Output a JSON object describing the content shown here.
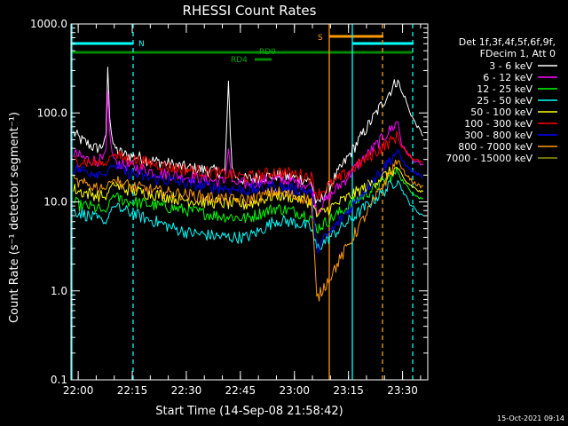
{
  "chart_data": {
    "type": "line",
    "title": "RHESSI Count Rates",
    "xlabel": "Start Time (14-Sep-08 21:58:42)",
    "ylabel": "Count Rate (s⁻¹ detector segment⁻¹)",
    "footer_date": "15-Oct-2021 09:14",
    "x_unit": "minutes after 21:58:42",
    "xlim": [
      -0.7,
      98.3
    ],
    "ylim": [
      0.1,
      1000
    ],
    "yscale": "log",
    "grid": false,
    "legend_placement": "right",
    "legend_header": [
      "Det 1f,3f,4f,5f,6f,9f,",
      "FDecim 1, Att 0"
    ],
    "x_ticks": [
      {
        "v": 1.3,
        "label": "22:00"
      },
      {
        "v": 16.3,
        "label": "22:15"
      },
      {
        "v": 31.3,
        "label": "22:30"
      },
      {
        "v": 46.3,
        "label": "22:45"
      },
      {
        "v": 61.3,
        "label": "23:00"
      },
      {
        "v": 76.3,
        "label": "23:15"
      },
      {
        "v": 91.3,
        "label": "23:30"
      }
    ],
    "y_ticks": [
      {
        "v": 0.1,
        "label": "0.1"
      },
      {
        "v": 1,
        "label": "1.0"
      },
      {
        "v": 10,
        "label": "10.0"
      },
      {
        "v": 100,
        "label": "100.0"
      },
      {
        "v": 1000,
        "label": "1000.0"
      }
    ],
    "series": [
      {
        "name": "3 - 6 keV",
        "color": "#ffffff",
        "x": [
          0,
          2,
          4,
          6,
          8,
          9,
          9.5,
          10,
          10.5,
          11,
          12,
          14,
          16,
          18,
          20,
          24,
          28,
          32,
          36,
          40,
          42,
          43,
          43.5,
          44,
          45,
          46,
          48,
          52,
          56,
          60,
          64,
          66,
          67.5,
          90,
          91,
          92,
          93,
          94,
          95,
          96,
          97
        ],
        "y": [
          60,
          50,
          45,
          40,
          42,
          55,
          330,
          95,
          60,
          45,
          38,
          34,
          33,
          32,
          30,
          28,
          26,
          24,
          23,
          22,
          22,
          220,
          60,
          25,
          19,
          18,
          18,
          19,
          20,
          19,
          18,
          17,
          9,
          240,
          170,
          150,
          110,
          90,
          75,
          65,
          55
        ]
      },
      {
        "name": "6 - 12 keV",
        "color": "#ff00ff",
        "x": [
          0,
          2,
          4,
          6,
          8,
          9,
          9.5,
          10,
          10.5,
          11,
          12,
          14,
          16,
          18,
          20,
          24,
          28,
          32,
          36,
          40,
          42,
          43,
          43.5,
          44,
          45,
          46,
          48,
          52,
          56,
          60,
          64,
          66,
          67.5,
          90,
          91,
          92,
          93,
          94,
          95,
          96,
          97
        ],
        "y": [
          35,
          32,
          30,
          29,
          30,
          38,
          170,
          65,
          40,
          32,
          28,
          26,
          25,
          24,
          23,
          21,
          20,
          19,
          18,
          17,
          17,
          40,
          25,
          17,
          16,
          16,
          16,
          17,
          18,
          17,
          16,
          15,
          8,
          80,
          45,
          38,
          34,
          30,
          28,
          27,
          26
        ]
      },
      {
        "name": "12 - 25 keV",
        "color": "#00ff00",
        "x": [
          0,
          2,
          4,
          6,
          8,
          9,
          10,
          11,
          12,
          14,
          16,
          18,
          20,
          24,
          28,
          32,
          36,
          40,
          44,
          48,
          52,
          56,
          60,
          64,
          66,
          67.5,
          90,
          91,
          92,
          93,
          94,
          95,
          96,
          97
        ],
        "y": [
          10,
          9,
          9,
          8.5,
          8,
          7.5,
          10,
          12,
          11,
          10.5,
          10,
          9.8,
          9.5,
          9,
          8.5,
          8,
          7.5,
          7,
          6.8,
          6.5,
          7.5,
          8.5,
          8,
          7.3,
          6.8,
          5,
          22,
          18,
          16,
          14,
          13,
          12,
          11,
          11
        ]
      },
      {
        "name": "25 - 50 keV",
        "color": "#00ffff",
        "x": [
          0,
          2,
          4,
          6,
          8,
          9,
          10,
          11,
          12,
          14,
          16,
          18,
          20,
          24,
          28,
          32,
          36,
          40,
          44,
          48,
          52,
          56,
          60,
          64,
          66,
          67.5,
          90,
          91,
          92,
          93,
          94,
          95,
          96,
          97
        ],
        "y": [
          8,
          7.5,
          7,
          6.5,
          6,
          5.8,
          7.5,
          9,
          8.5,
          8,
          7.5,
          7,
          6.5,
          5.8,
          5,
          4.5,
          4.3,
          4.1,
          4,
          4,
          4.8,
          6.2,
          6,
          5.5,
          5,
          3,
          18,
          14,
          12,
          10,
          9,
          8,
          7.5,
          7
        ]
      },
      {
        "name": "50 - 100 keV",
        "color": "#ffff00",
        "x": [
          0,
          2,
          4,
          6,
          8,
          9,
          10,
          11,
          12,
          14,
          16,
          18,
          20,
          24,
          28,
          32,
          36,
          40,
          44,
          48,
          52,
          56,
          60,
          64,
          66,
          67.5,
          90,
          91,
          92,
          93,
          94,
          95,
          96,
          97
        ],
        "y": [
          14,
          13,
          12.5,
          12,
          11.5,
          11,
          14,
          16,
          15,
          14,
          13.5,
          13,
          12.5,
          12,
          11,
          10.5,
          10,
          9.8,
          9.5,
          9.3,
          10.5,
          12,
          11.5,
          10.5,
          9.8,
          7,
          24,
          20,
          17,
          16,
          15,
          14,
          13,
          13
        ]
      },
      {
        "name": "100 - 300 keV",
        "color": "#ff0000",
        "x": [
          0,
          2,
          4,
          6,
          8,
          9,
          10,
          11,
          12,
          14,
          16,
          18,
          20,
          24,
          28,
          32,
          36,
          40,
          44,
          48,
          52,
          56,
          60,
          64,
          66,
          67.5,
          90,
          91,
          92,
          93,
          94,
          95,
          96,
          97
        ],
        "y": [
          30,
          29,
          28,
          27.5,
          27,
          26,
          32,
          35,
          33,
          31,
          30,
          29,
          28,
          26,
          24,
          23,
          22,
          21,
          20,
          19,
          20,
          22,
          21,
          20,
          19,
          12,
          55,
          42,
          38,
          34,
          31,
          30,
          29,
          28
        ]
      },
      {
        "name": "300 - 800 keV",
        "color": "#0000ff",
        "x": [
          0,
          2,
          4,
          6,
          8,
          9,
          10,
          11,
          12,
          14,
          16,
          18,
          20,
          24,
          28,
          32,
          36,
          40,
          44,
          48,
          52,
          56,
          60,
          64,
          66,
          67.5,
          90,
          91,
          92,
          93,
          94,
          95,
          96,
          97
        ],
        "y": [
          24,
          23,
          22,
          21.5,
          21,
          20,
          24,
          26,
          24,
          22,
          21,
          20,
          19,
          18,
          17,
          16,
          15,
          14.5,
          14,
          13.5,
          14,
          15,
          14,
          13.5,
          13,
          3,
          38,
          30,
          27,
          24,
          22,
          21,
          20,
          19
        ]
      },
      {
        "name": "800 - 7000 keV",
        "color": "#ff9900",
        "x": [
          0,
          2,
          4,
          6,
          8,
          9,
          10,
          11,
          12,
          14,
          16,
          18,
          20,
          24,
          28,
          32,
          36,
          40,
          44,
          48,
          52,
          56,
          60,
          64,
          66,
          67.5,
          90,
          91,
          92,
          93,
          94,
          95,
          96,
          97
        ],
        "y": [
          17,
          16,
          15.5,
          15,
          14.5,
          14,
          17,
          18,
          17,
          16,
          15,
          14.5,
          14,
          13,
          12.5,
          12,
          11.5,
          11,
          10.5,
          10.5,
          11.5,
          13,
          12,
          11,
          10.5,
          0.8,
          30,
          24,
          21,
          19,
          17,
          16,
          15,
          15
        ]
      },
      {
        "name": "7000 - 15000 keV",
        "color": "#999900",
        "x": [],
        "y": []
      }
    ],
    "annotations": {
      "N_label": "N",
      "S_label": "S",
      "RD0_label": "RD0",
      "RD4_label": "RD4"
    }
  }
}
